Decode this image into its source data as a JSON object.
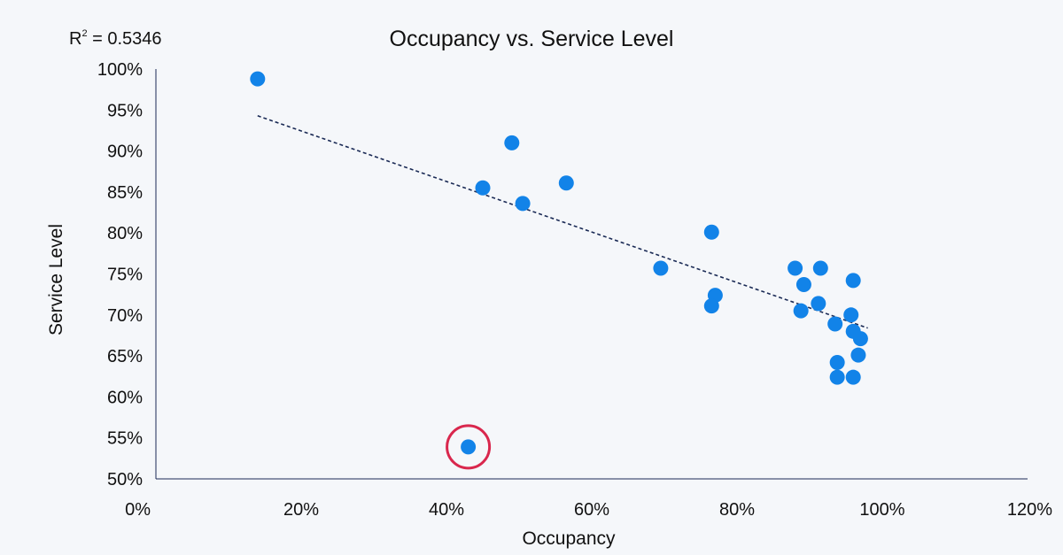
{
  "chart_data": {
    "type": "scatter",
    "title": "Occupancy vs. Service Level",
    "xlabel": "Occupancy",
    "ylabel": "Service Level",
    "xlim": [
      0,
      1.2
    ],
    "ylim": [
      0.5,
      1.0
    ],
    "x_ticks": [
      "0%",
      "20%",
      "40%",
      "60%",
      "80%",
      "100%",
      "120%"
    ],
    "y_ticks": [
      "100%",
      "95%",
      "90%",
      "85%",
      "80%",
      "75%",
      "70%",
      "65%",
      "60%",
      "55%",
      "50%"
    ],
    "annotation": {
      "r2_prefix": "R",
      "r2_sup": "2",
      "r2_value": " = 0.5346"
    },
    "point_color": "#1283e8",
    "trendline_color": "#1a2a55",
    "highlight_color": "#d9274d",
    "highlighted_point_index": 0,
    "trendline": {
      "x": [
        0.14,
        0.98
      ],
      "y": [
        0.943,
        0.684
      ]
    },
    "points": [
      {
        "x": 0.43,
        "y": 0.539
      },
      {
        "x": 0.14,
        "y": 0.988
      },
      {
        "x": 0.49,
        "y": 0.91
      },
      {
        "x": 0.45,
        "y": 0.855
      },
      {
        "x": 0.505,
        "y": 0.836
      },
      {
        "x": 0.565,
        "y": 0.861
      },
      {
        "x": 0.695,
        "y": 0.757
      },
      {
        "x": 0.765,
        "y": 0.801
      },
      {
        "x": 0.77,
        "y": 0.724
      },
      {
        "x": 0.765,
        "y": 0.711
      },
      {
        "x": 0.88,
        "y": 0.757
      },
      {
        "x": 0.915,
        "y": 0.757
      },
      {
        "x": 0.892,
        "y": 0.737
      },
      {
        "x": 0.912,
        "y": 0.714
      },
      {
        "x": 0.888,
        "y": 0.705
      },
      {
        "x": 0.935,
        "y": 0.689
      },
      {
        "x": 0.96,
        "y": 0.742
      },
      {
        "x": 0.957,
        "y": 0.7
      },
      {
        "x": 0.96,
        "y": 0.68
      },
      {
        "x": 0.97,
        "y": 0.671
      },
      {
        "x": 0.967,
        "y": 0.651
      },
      {
        "x": 0.938,
        "y": 0.642
      },
      {
        "x": 0.938,
        "y": 0.624
      },
      {
        "x": 0.96,
        "y": 0.624
      }
    ]
  }
}
